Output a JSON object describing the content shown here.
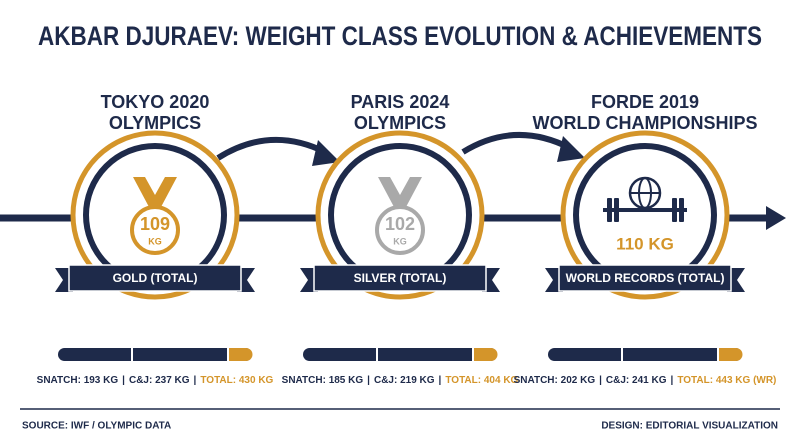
{
  "header": {
    "title": "AKBAR DJURAEV: WEIGHT CLASS EVOLUTION & ACHIEVEMENTS"
  },
  "separator": "|",
  "panels": [
    {
      "heading": [
        "TOKYO 2020",
        "OLYMPICS"
      ],
      "weight": [
        "109",
        "KG"
      ],
      "banner": "GOLD (TOTAL)",
      "medal": "gold",
      "stats": [
        "SNATCH: 193 KG",
        "C&J: 237 KG",
        "TOTAL: 430 KG"
      ]
    },
    {
      "heading": [
        "PARIS 2024",
        "OLYMPICS"
      ],
      "weight": [
        "102",
        "KG"
      ],
      "banner": "SILVER (TOTAL)",
      "medal": "silver",
      "stats": [
        "SNATCH: 185 KG",
        "C&J: 219 KG",
        "TOTAL: 404 KG"
      ]
    },
    {
      "heading": [
        "FORDE 2019",
        "WORLD CHAMPIONSHIPS"
      ],
      "weight": [
        "110 KG"
      ],
      "banner": "WORLD RECORDS (TOTAL)",
      "medal": "barbell",
      "stats": [
        "SNATCH: 202 KG",
        "C&J: 241 KG",
        "TOTAL: 443 KG (WR)"
      ]
    }
  ],
  "footer": {
    "source": "SOURCE: IWF / OLYMPIC DATA",
    "design": "DESIGN: EDITORIAL VISUALIZATION"
  }
}
